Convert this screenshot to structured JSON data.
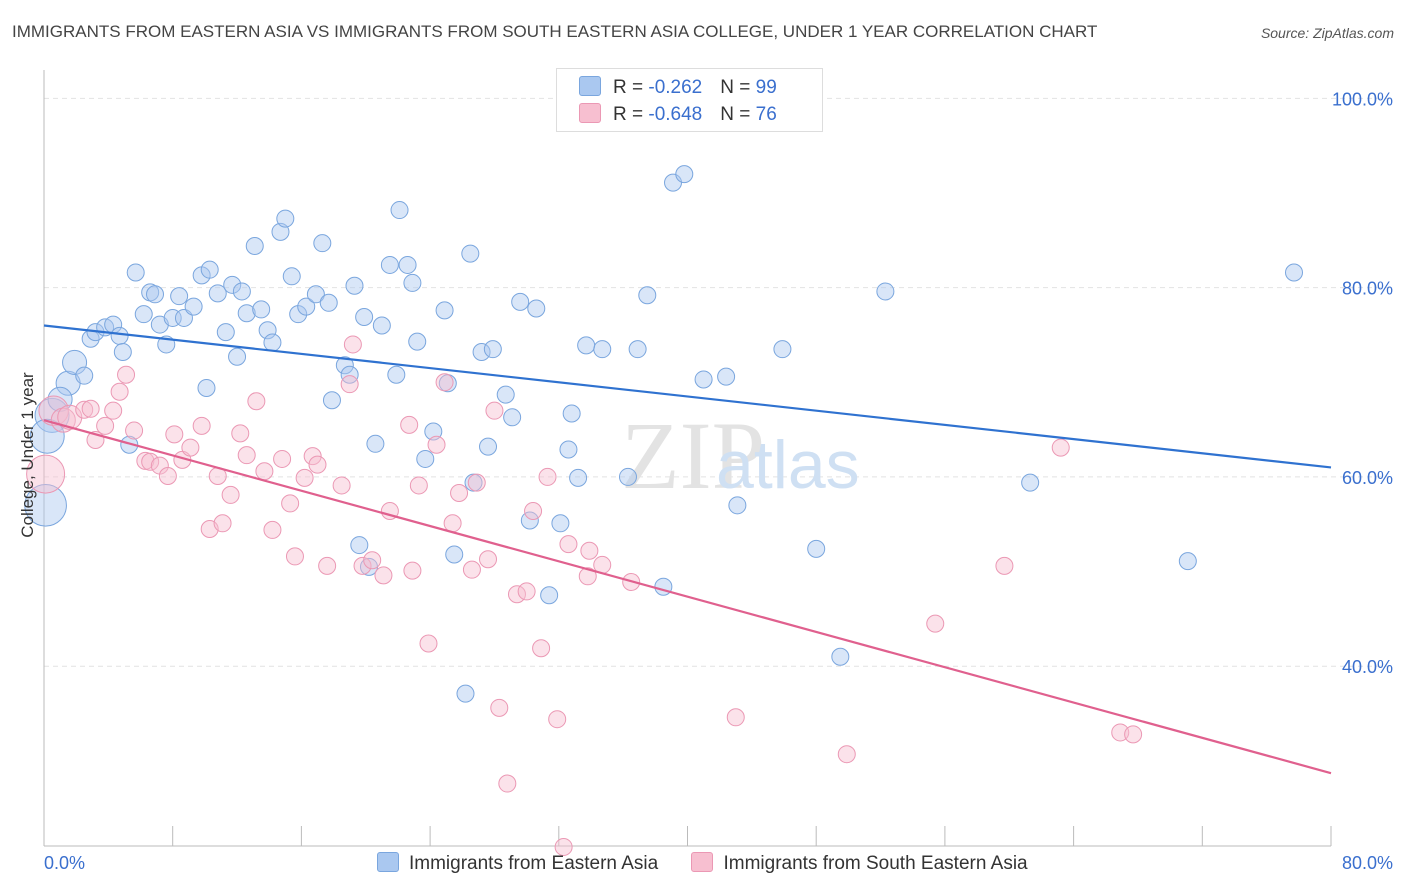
{
  "title": "IMMIGRANTS FROM EASTERN ASIA VS IMMIGRANTS FROM SOUTH EASTERN ASIA COLLEGE, UNDER 1 YEAR CORRELATION CHART",
  "source": "Source: ZipAtlas.com",
  "watermark": {
    "zip": "ZIP",
    "atlas": "atlas"
  },
  "legend": {
    "series1": {
      "r_label": "R = ",
      "r_value": "-0.262",
      "n_label": "N = ",
      "n_value": "99"
    },
    "series2": {
      "r_label": "R = ",
      "r_value": "-0.648",
      "n_label": "N = ",
      "n_value": "76"
    }
  },
  "colors": {
    "blue_fill": "#aac8f0",
    "blue_stroke": "#7aa6de",
    "blue_line": "#2f72d0",
    "pink_fill": "#f7bfd0",
    "pink_stroke": "#eb98b4",
    "pink_line": "#e0608e",
    "axis_text": "#3a6fce",
    "grid": "#e2e2e2"
  },
  "chart_data": {
    "type": "scatter",
    "title": "IMMIGRANTS FROM EASTERN ASIA VS IMMIGRANTS FROM SOUTH EASTERN ASIA COLLEGE, UNDER 1 YEAR CORRELATION CHART",
    "xlabel": "",
    "ylabel": "College, Under 1 year",
    "xlim": [
      0,
      80
    ],
    "ylim": [
      21,
      103
    ],
    "x_tick_labels": [
      "0.0%",
      "80.0%"
    ],
    "y_ticks": [
      40,
      60,
      80,
      100
    ],
    "y_tick_labels": [
      "40.0%",
      "60.0%",
      "80.0%",
      "100.0%"
    ],
    "grid": true,
    "legend_position": "top-center",
    "series": [
      {
        "name": "Immigrants from Eastern Asia",
        "color": "#aac8f0",
        "trend": {
          "x": [
            0,
            80
          ],
          "y": [
            76.0,
            61.0
          ]
        },
        "points": [
          [
            0.5,
            66.5,
            4
          ],
          [
            0.2,
            64.3,
            4
          ],
          [
            0.1,
            57.0,
            6
          ],
          [
            1.5,
            69.9,
            2
          ],
          [
            1.0,
            68.2,
            2
          ],
          [
            1.9,
            72.1,
            2
          ],
          [
            2.5,
            70.7,
            1
          ],
          [
            2.9,
            74.6,
            1
          ],
          [
            3.2,
            75.3,
            1
          ],
          [
            3.8,
            75.8,
            1
          ],
          [
            4.3,
            76.1,
            1
          ],
          [
            4.7,
            74.9,
            1
          ],
          [
            4.9,
            73.2,
            1
          ],
          [
            5.3,
            63.4,
            1
          ],
          [
            5.7,
            81.6,
            1
          ],
          [
            6.2,
            77.2,
            1
          ],
          [
            6.6,
            79.5,
            1
          ],
          [
            6.9,
            79.3,
            1
          ],
          [
            7.2,
            76.1,
            1
          ],
          [
            7.6,
            74.0,
            1
          ],
          [
            8.0,
            76.8,
            1
          ],
          [
            8.4,
            79.1,
            1
          ],
          [
            8.7,
            76.8,
            1
          ],
          [
            9.3,
            78.0,
            1
          ],
          [
            9.8,
            81.3,
            1
          ],
          [
            10.1,
            69.4,
            1
          ],
          [
            10.3,
            81.9,
            1
          ],
          [
            10.8,
            79.4,
            1
          ],
          [
            11.3,
            75.3,
            1
          ],
          [
            11.7,
            80.3,
            1
          ],
          [
            12.0,
            72.7,
            1
          ],
          [
            12.3,
            79.6,
            1
          ],
          [
            12.6,
            77.3,
            1
          ],
          [
            13.1,
            84.4,
            1
          ],
          [
            13.5,
            77.7,
            1
          ],
          [
            13.9,
            75.5,
            1
          ],
          [
            14.2,
            74.2,
            1
          ],
          [
            14.7,
            85.9,
            1
          ],
          [
            15.0,
            87.3,
            1
          ],
          [
            15.4,
            81.2,
            1
          ],
          [
            15.8,
            77.2,
            1
          ],
          [
            16.3,
            78.0,
            1
          ],
          [
            16.9,
            79.3,
            1
          ],
          [
            17.3,
            84.7,
            1
          ],
          [
            17.7,
            78.4,
            1
          ],
          [
            17.9,
            68.1,
            1
          ],
          [
            18.7,
            71.8,
            1
          ],
          [
            19.0,
            70.8,
            1
          ],
          [
            19.3,
            80.2,
            1
          ],
          [
            19.6,
            52.8,
            1
          ],
          [
            19.9,
            76.9,
            1
          ],
          [
            20.2,
            50.5,
            1
          ],
          [
            20.6,
            63.5,
            1
          ],
          [
            21.0,
            76.0,
            1
          ],
          [
            21.5,
            82.4,
            1
          ],
          [
            21.9,
            70.8,
            1
          ],
          [
            22.1,
            88.2,
            1
          ],
          [
            22.6,
            82.4,
            1
          ],
          [
            22.9,
            80.5,
            1
          ],
          [
            23.2,
            74.3,
            1
          ],
          [
            23.7,
            61.9,
            1
          ],
          [
            24.2,
            64.8,
            1
          ],
          [
            24.9,
            77.6,
            1
          ],
          [
            25.1,
            69.9,
            1
          ],
          [
            25.5,
            51.8,
            1
          ],
          [
            26.2,
            37.1,
            1
          ],
          [
            26.5,
            83.6,
            1
          ],
          [
            26.7,
            59.4,
            1
          ],
          [
            27.2,
            73.2,
            1
          ],
          [
            27.6,
            63.2,
            1
          ],
          [
            27.9,
            73.5,
            1
          ],
          [
            28.7,
            68.7,
            1
          ],
          [
            29.1,
            66.3,
            1
          ],
          [
            29.6,
            78.5,
            1
          ],
          [
            30.6,
            77.8,
            1
          ],
          [
            32.6,
            62.9,
            1
          ],
          [
            32.8,
            66.7,
            1
          ],
          [
            33.2,
            59.9,
            1
          ],
          [
            34.7,
            73.5,
            1
          ],
          [
            36.9,
            73.5,
            1
          ],
          [
            36.3,
            60.0,
            1
          ],
          [
            37.5,
            79.2,
            1
          ],
          [
            39.1,
            91.1,
            1
          ],
          [
            39.8,
            92.0,
            1
          ],
          [
            32.1,
            55.1,
            1
          ],
          [
            38.5,
            48.4,
            1
          ],
          [
            41.0,
            70.3,
            1
          ],
          [
            42.4,
            70.6,
            1
          ],
          [
            43.1,
            57.0,
            1
          ],
          [
            45.9,
            73.5,
            1
          ],
          [
            48.0,
            52.4,
            1
          ],
          [
            49.5,
            41.0,
            1
          ],
          [
            52.3,
            79.6,
            1
          ],
          [
            30.2,
            55.4,
            1
          ],
          [
            31.4,
            47.5,
            1
          ],
          [
            61.3,
            59.4,
            1
          ],
          [
            71.1,
            51.1,
            1
          ],
          [
            77.7,
            81.6,
            1
          ],
          [
            33.7,
            73.9,
            1
          ]
        ]
      },
      {
        "name": "Immigrants from South Eastern Asia",
        "color": "#f7bfd0",
        "trend": {
          "x": [
            0,
            80
          ],
          "y": [
            66.0,
            28.7
          ]
        },
        "points": [
          [
            0.1,
            60.3,
            5
          ],
          [
            0.6,
            67.0,
            3
          ],
          [
            1.2,
            66.0,
            2
          ],
          [
            1.6,
            66.3,
            2
          ],
          [
            2.5,
            67.1,
            1
          ],
          [
            2.9,
            67.2,
            1
          ],
          [
            3.2,
            63.9,
            1
          ],
          [
            3.8,
            65.4,
            1
          ],
          [
            4.3,
            67.0,
            1
          ],
          [
            4.7,
            69.0,
            1
          ],
          [
            5.1,
            70.8,
            1
          ],
          [
            5.6,
            64.9,
            1
          ],
          [
            6.3,
            61.7,
            1
          ],
          [
            6.6,
            61.6,
            1
          ],
          [
            7.2,
            61.2,
            1
          ],
          [
            7.7,
            60.1,
            1
          ],
          [
            8.1,
            64.5,
            1
          ],
          [
            8.6,
            61.8,
            1
          ],
          [
            9.1,
            63.1,
            1
          ],
          [
            9.8,
            65.4,
            1
          ],
          [
            10.3,
            54.5,
            1
          ],
          [
            10.8,
            60.1,
            1
          ],
          [
            11.1,
            55.1,
            1
          ],
          [
            11.6,
            58.1,
            1
          ],
          [
            12.2,
            64.6,
            1
          ],
          [
            12.6,
            62.3,
            1
          ],
          [
            13.2,
            68.0,
            1
          ],
          [
            13.7,
            60.6,
            1
          ],
          [
            14.2,
            54.4,
            1
          ],
          [
            14.8,
            61.9,
            1
          ],
          [
            15.3,
            57.2,
            1
          ],
          [
            15.6,
            51.6,
            1
          ],
          [
            16.2,
            59.9,
            1
          ],
          [
            16.7,
            62.2,
            1
          ],
          [
            17.0,
            61.3,
            1
          ],
          [
            17.6,
            50.6,
            1
          ],
          [
            18.5,
            59.1,
            1
          ],
          [
            19.0,
            69.8,
            1
          ],
          [
            19.2,
            74.0,
            1
          ],
          [
            19.8,
            50.6,
            1
          ],
          [
            20.4,
            51.2,
            1
          ],
          [
            21.1,
            49.6,
            1
          ],
          [
            21.5,
            56.4,
            1
          ],
          [
            22.7,
            65.5,
            1
          ],
          [
            22.9,
            50.1,
            1
          ],
          [
            23.3,
            59.1,
            1
          ],
          [
            23.9,
            42.4,
            1
          ],
          [
            24.4,
            63.4,
            1
          ],
          [
            24.9,
            70.0,
            1
          ],
          [
            25.4,
            55.1,
            1
          ],
          [
            25.8,
            58.3,
            1
          ],
          [
            26.6,
            50.2,
            1
          ],
          [
            26.9,
            59.4,
            1
          ],
          [
            27.6,
            51.3,
            1
          ],
          [
            28.0,
            67.0,
            1
          ],
          [
            28.3,
            35.6,
            1
          ],
          [
            28.8,
            27.6,
            1
          ],
          [
            29.4,
            47.6,
            1
          ],
          [
            30.0,
            47.9,
            1
          ],
          [
            30.4,
            56.4,
            1
          ],
          [
            30.9,
            41.9,
            1
          ],
          [
            31.3,
            60.0,
            1
          ],
          [
            31.9,
            34.4,
            1
          ],
          [
            32.6,
            52.9,
            1
          ],
          [
            33.8,
            49.5,
            1
          ],
          [
            34.7,
            50.7,
            1
          ],
          [
            32.3,
            20.9,
            1
          ],
          [
            36.5,
            48.9,
            1
          ],
          [
            43.0,
            34.6,
            1
          ],
          [
            49.9,
            30.7,
            1
          ],
          [
            55.4,
            44.5,
            1
          ],
          [
            59.7,
            50.6,
            1
          ],
          [
            63.2,
            63.1,
            1
          ],
          [
            66.9,
            33.0,
            1
          ],
          [
            67.7,
            32.8,
            1
          ],
          [
            33.9,
            52.2,
            1
          ]
        ]
      }
    ]
  },
  "bottom_legend": {
    "label1": "Immigrants from Eastern Asia",
    "label2": "Immigrants from South Eastern Asia"
  }
}
